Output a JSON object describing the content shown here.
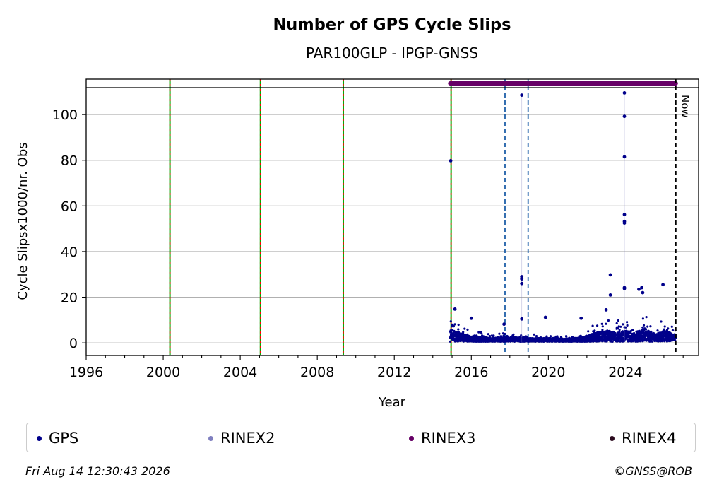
{
  "chart_data": {
    "type": "scatter",
    "title": "Number of GPS Cycle Slips",
    "subtitle": "PAR100GLP - IPGP-GNSS",
    "xlabel": "Year",
    "ylabel": "Cycle Slipsx1000/nr. Obs",
    "xlim": [
      1996,
      2027.8
    ],
    "ylim": [
      -5.5,
      115.5
    ],
    "x_ticks": [
      1996,
      2000,
      2004,
      2008,
      2012,
      2016,
      2020,
      2024
    ],
    "y_ticks": [
      0,
      20,
      40,
      60,
      80,
      100
    ],
    "grid": "horizontal",
    "legend_placement": "bottom",
    "legend": [
      {
        "name": "GPS",
        "color": "#00008b"
      },
      {
        "name": "RINEX2",
        "color": "#7f7fbf"
      },
      {
        "name": "RINEX3",
        "color": "#660066"
      },
      {
        "name": "RINEX4",
        "color": "#2b0a1e"
      }
    ],
    "event_lines_green_red": [
      2000.35,
      2005.05,
      2009.35,
      2014.95
    ],
    "event_lines_blue": [
      2017.75,
      2018.95
    ],
    "now_line": {
      "x": 2026.62,
      "label": "Now"
    },
    "rinex3_span": [
      2014.9,
      2026.62
    ],
    "series": [
      {
        "name": "GPS",
        "color": "#00008b",
        "start": 2014.9,
        "end": 2026.62,
        "baseline": [
          [
            2014.9,
            6
          ],
          [
            2015.3,
            4
          ],
          [
            2016.0,
            2.5
          ],
          [
            2017.0,
            1.5
          ],
          [
            2018.0,
            2
          ],
          [
            2019.0,
            1.5
          ],
          [
            2020.0,
            1.5
          ],
          [
            2021.0,
            1.2
          ],
          [
            2021.8,
            2
          ],
          [
            2022.5,
            4
          ],
          [
            2023.0,
            5
          ],
          [
            2023.5,
            4
          ],
          [
            2024.0,
            5
          ],
          [
            2024.5,
            3
          ],
          [
            2025.0,
            6
          ],
          [
            2025.6,
            3
          ],
          [
            2026.0,
            5
          ],
          [
            2026.62,
            3
          ]
        ],
        "outliers": [
          {
            "x": 2014.93,
            "y": 79.8
          },
          {
            "x": 2018.62,
            "y": 108.5
          },
          {
            "x": 2018.62,
            "y": 29
          },
          {
            "x": 2018.62,
            "y": 28
          },
          {
            "x": 2018.62,
            "y": 26
          },
          {
            "x": 2018.62,
            "y": 10.5
          },
          {
            "x": 2023.22,
            "y": 29.8
          },
          {
            "x": 2023.22,
            "y": 21
          },
          {
            "x": 2023.95,
            "y": 109.5
          },
          {
            "x": 2023.95,
            "y": 99.2
          },
          {
            "x": 2023.95,
            "y": 81.5
          },
          {
            "x": 2023.95,
            "y": 56.2
          },
          {
            "x": 2023.95,
            "y": 53.2
          },
          {
            "x": 2023.95,
            "y": 52.5
          },
          {
            "x": 2023.95,
            "y": 24.2
          },
          {
            "x": 2023.95,
            "y": 23.8
          },
          {
            "x": 2024.7,
            "y": 23.5
          },
          {
            "x": 2024.85,
            "y": 24.2
          },
          {
            "x": 2024.9,
            "y": 22
          },
          {
            "x": 2025.95,
            "y": 25.5
          },
          {
            "x": 2015.15,
            "y": 14.8
          },
          {
            "x": 2016.0,
            "y": 10.8
          },
          {
            "x": 2019.85,
            "y": 11.2
          },
          {
            "x": 2021.7,
            "y": 10.8
          },
          {
            "x": 2017.7,
            "y": 8.2
          },
          {
            "x": 2023.0,
            "y": 14.5
          }
        ]
      }
    ]
  },
  "footer": {
    "timestamp": "Fri Aug 14 12:30:43 2026",
    "credit": "©GNSS@ROB"
  }
}
